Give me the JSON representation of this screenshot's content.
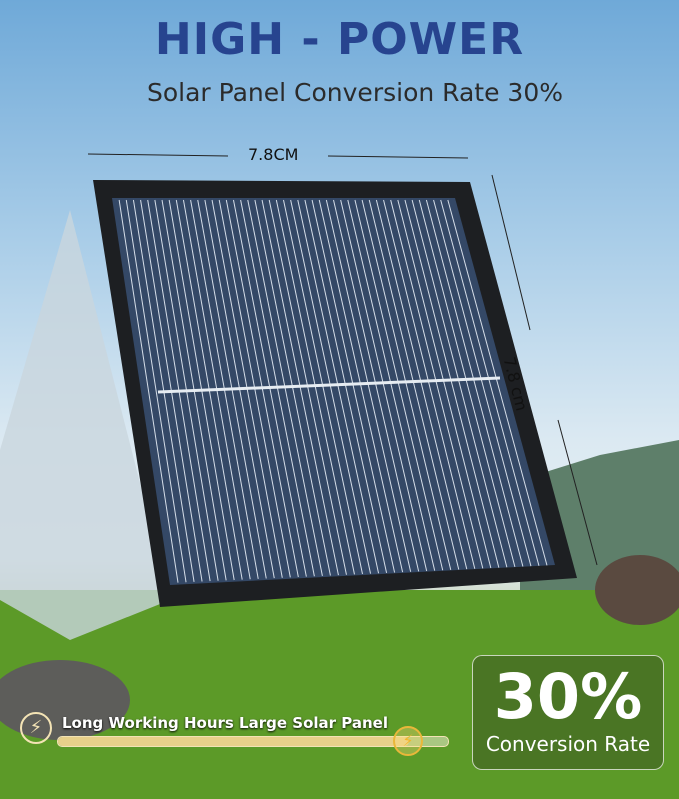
{
  "header": {
    "title": "HIGH - POWER",
    "subtitle": "Solar Panel Conversion Rate 30%"
  },
  "dimensions": {
    "width": "7.8CM",
    "height": "7.8 cm"
  },
  "badge": {
    "value": "30%",
    "label": "Conversion Rate"
  },
  "feature": {
    "label": "Long Working Hours Large Solar Panel",
    "icon": "lightning-bolt-icon",
    "progress": 0.9
  },
  "colors": {
    "title": "#27448f",
    "accent": "#e9b73a",
    "panel": "#2f3e55"
  }
}
